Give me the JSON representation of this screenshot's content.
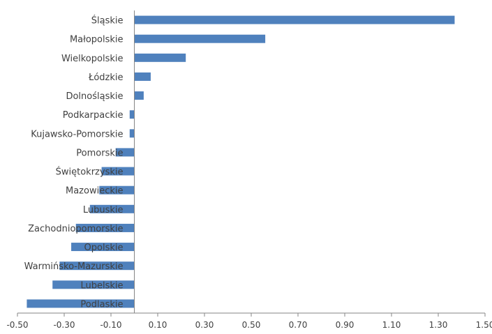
{
  "chart_data": {
    "type": "bar",
    "orientation": "horizontal",
    "title": "",
    "xlabel": "",
    "ylabel": "",
    "categories": [
      "Śląskie",
      "Małopolskie",
      "Wielkopolskie",
      "Łódzkie",
      "Dolnośląskie",
      "Podkarpackie",
      "Kujawsko-Pomorskie",
      "Pomorskie",
      "Świętokrzyskie",
      "Mazowieckie",
      "Lubuskie",
      "Zachodniopomorskie",
      "Opolskie",
      "Warmińsko-Mazurskie",
      "Lubelskie",
      "Podlaskie"
    ],
    "values": [
      1.37,
      0.56,
      0.22,
      0.07,
      0.04,
      -0.02,
      -0.02,
      -0.08,
      -0.14,
      -0.15,
      -0.19,
      -0.25,
      -0.27,
      -0.32,
      -0.35,
      -0.46
    ],
    "xlim": [
      -0.5,
      1.5
    ],
    "xticks": [
      "-0.50",
      "-0.30",
      "-0.10",
      "0.10",
      "0.30",
      "0.50",
      "0.70",
      "0.90",
      "1.10",
      "1.30",
      "1.50"
    ],
    "bar_color": "#4F81BD",
    "grid": false,
    "legend": "none"
  }
}
